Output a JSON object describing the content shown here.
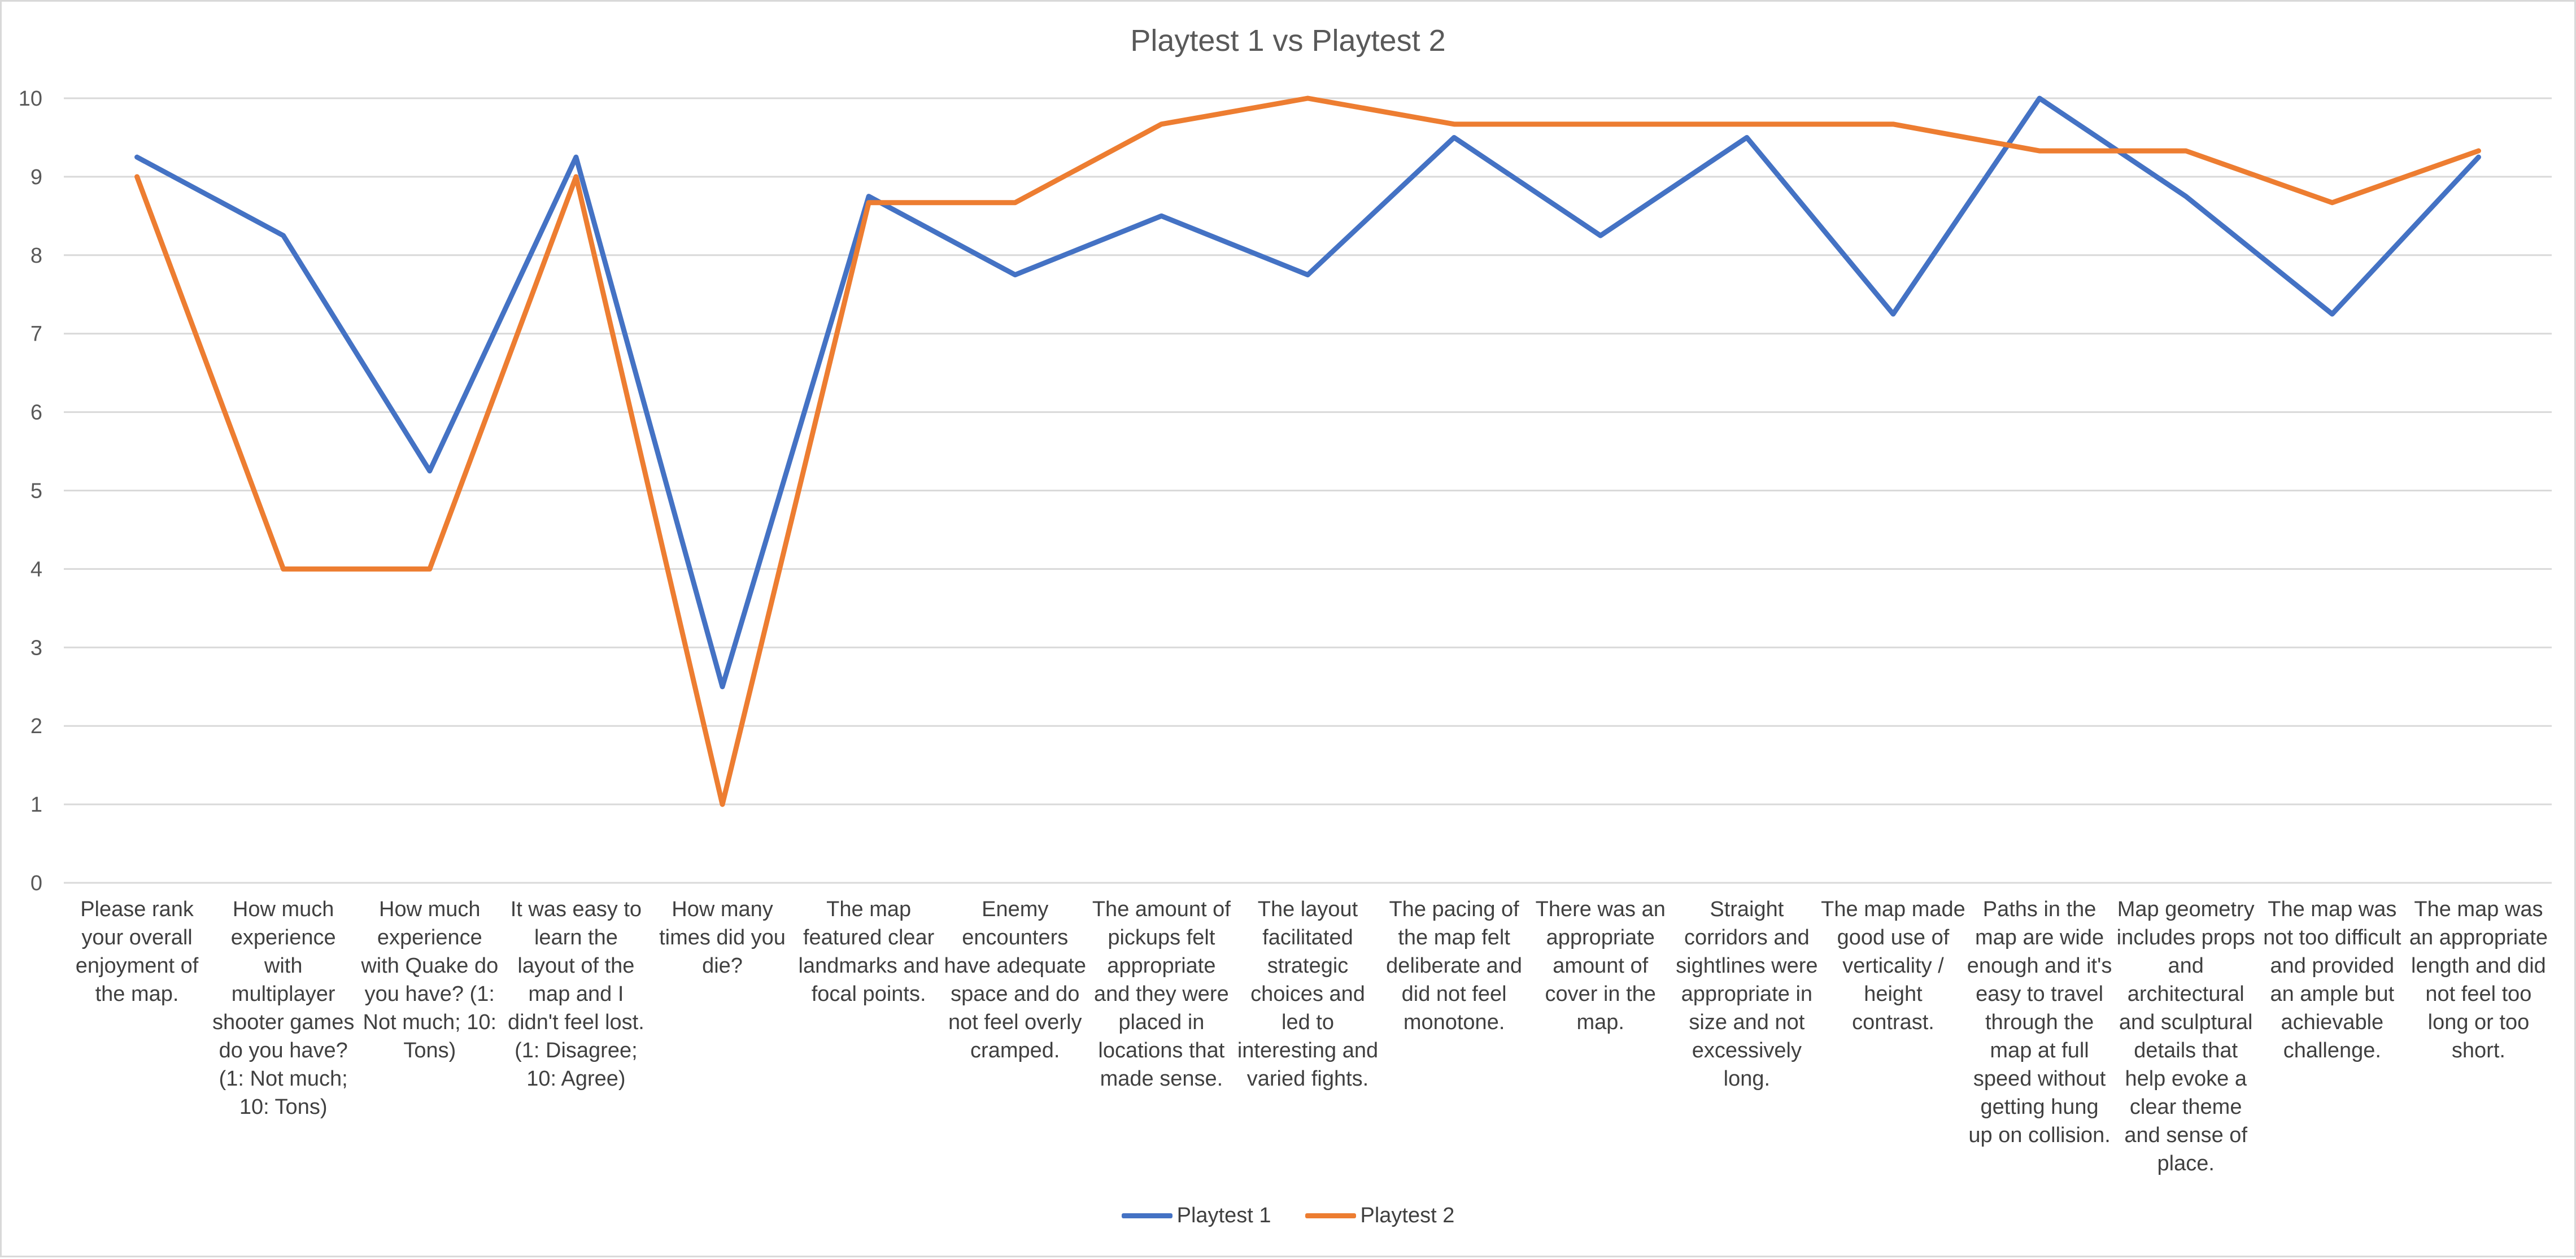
{
  "chart_data": {
    "type": "line",
    "title": "Playtest 1 vs Playtest 2",
    "xlabel": "",
    "ylabel": "",
    "ylim": [
      0,
      10
    ],
    "yticks": [
      "0",
      "1",
      "2",
      "3",
      "4",
      "5",
      "6",
      "7",
      "8",
      "9",
      "10"
    ],
    "grid": true,
    "legend_position": "bottom",
    "categories": [
      "Please rank your overall enjoyment of the map.",
      "How much experience with multiplayer shooter games do you have? (1: Not much; 10: Tons)",
      "How much experience with Quake do you have? (1: Not much; 10: Tons)",
      "It was easy to learn the layout of the map and I didn't feel lost. (1: Disagree; 10: Agree)",
      "How many times did you die?",
      "The map featured clear landmarks and focal points.",
      "Enemy encounters have adequate space and do not feel overly cramped.",
      "The amount of pickups felt appropriate and they were placed in locations that made sense.",
      "The layout facilitated strategic choices and led to interesting and varied fights.",
      "The pacing of the map felt deliberate and did not feel monotone.",
      "There was an appropriate amount of cover in the map.",
      "Straight corridors and sightlines were appropriate in size and not excessively long.",
      "The map made good use of verticality / height contrast.",
      "Paths in the map are wide enough and it's easy to travel through the map at full speed without getting hung up on collision.",
      "Map geometry includes props and architectural and sculptural details that help evoke a clear theme and sense of place.",
      "The map was not too difficult and provided an ample but achievable challenge.",
      "The map was an appropriate length and did not feel too long or too short."
    ],
    "series": [
      {
        "name": "Playtest 1",
        "color": "#4472c4",
        "values": [
          9.25,
          8.25,
          5.25,
          9.25,
          2.5,
          8.75,
          7.75,
          8.5,
          7.75,
          9.5,
          8.25,
          9.5,
          7.25,
          10,
          8.75,
          7.25,
          9.25
        ]
      },
      {
        "name": "Playtest 2",
        "color": "#ed7d31",
        "values": [
          9,
          4,
          4,
          9,
          1,
          8.67,
          8.67,
          9.67,
          10,
          9.67,
          9.67,
          9.67,
          9.67,
          9.33,
          9.33,
          8.67,
          9.33
        ]
      }
    ]
  }
}
